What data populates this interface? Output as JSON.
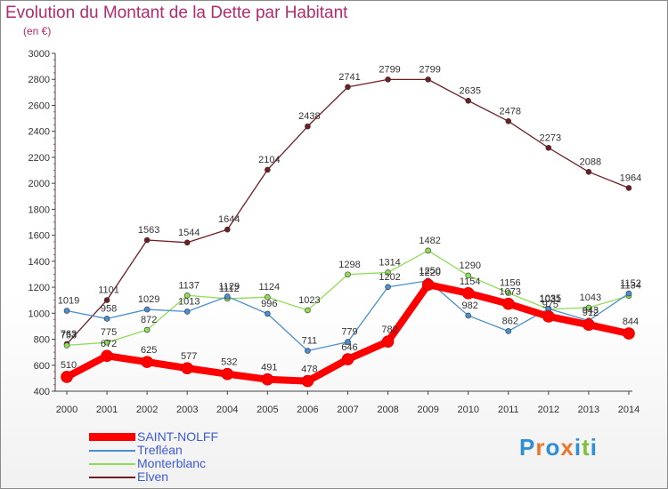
{
  "title": "Evolution du Montant de la Dette par Habitant",
  "unit": "(en €)",
  "logo": {
    "text": "Proxiti",
    "colors": [
      "#2f8fd6",
      "#e8792c",
      "#2f8fd6",
      "#e8792c",
      "#2f8fd6",
      "#7fbf3c",
      "#2f8fd6"
    ]
  },
  "chart_data": {
    "type": "line",
    "x": [
      "2000",
      "2001",
      "2002",
      "2003",
      "2004",
      "2005",
      "2006",
      "2007",
      "2008",
      "2009",
      "2010",
      "2011",
      "2012",
      "2013",
      "2014"
    ],
    "ylim": [
      400,
      3000
    ],
    "yticks": [
      400,
      600,
      800,
      1000,
      1200,
      1400,
      1600,
      1800,
      2000,
      2200,
      2400,
      2600,
      2800,
      3000
    ],
    "grid": false,
    "legend": "bottom-left",
    "series": [
      {
        "name": "SAINT-NOLFF",
        "color": "#ff0000",
        "values": [
          510,
          672,
          625,
          577,
          532,
          491,
          478,
          646,
          782,
          1220,
          1154,
          1073,
          975,
          912,
          844
        ]
      },
      {
        "name": "Trefléan",
        "color": "#4a8fcf",
        "values": [
          1019,
          958,
          1029,
          1013,
          1129,
          996,
          711,
          779,
          1202,
          1250,
          982,
          862,
          1035,
          943,
          1152
        ]
      },
      {
        "name": "Monterblanc",
        "color": "#8fdc55",
        "values": [
          753,
          775,
          872,
          1137,
          1112,
          1124,
          1023,
          1298,
          1314,
          1482,
          1290,
          1156,
          1031,
          1043,
          1134
        ]
      },
      {
        "name": "Elven",
        "color": "#6e1f24",
        "values": [
          763,
          1101,
          1563,
          1544,
          1644,
          2104,
          2438,
          2741,
          2799,
          2799,
          2635,
          2478,
          2273,
          2088,
          1964
        ]
      }
    ]
  }
}
